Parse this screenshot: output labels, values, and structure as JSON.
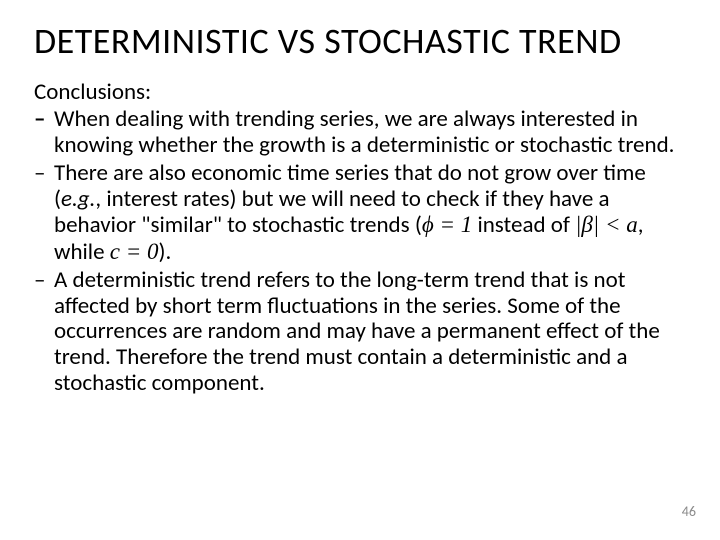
{
  "slide": {
    "title": "DETERMINISTIC VS STOCHASTIC TREND",
    "lead": "Conclusions:",
    "bullets": [
      {
        "dash_bold": true,
        "text": "When dealing with trending series, we are always interested in knowing whether the growth is a deterministic or stochastic trend."
      },
      {
        "dash_bold": false,
        "plain1": "There are also economic time series that do not grow over time (",
        "eg": "e.g.",
        "plain2": ", interest rates) but we will need to check if they have a behavior \"similar\" to stochastic trends (",
        "phi": "ϕ = 1",
        "plain3": " instead of ",
        "beta": "|β| < a",
        "plain4": ", while ",
        "czero": "c = 0",
        "plain5": ")."
      },
      {
        "dash_bold": false,
        "text": "A deterministic trend refers to the long-term trend that is not affected by short term fluctuations in the series. Some of the occurrences are random and may have a permanent effect of the trend. Therefore the trend must contain a deterministic and a stochastic component."
      }
    ],
    "page_number": "46"
  },
  "style": {
    "background_color": "#ffffff",
    "text_color": "#000000",
    "page_number_color": "#8a8a8a",
    "title_fontsize": 36,
    "body_fontsize": 23,
    "font_family": "Calibri"
  }
}
